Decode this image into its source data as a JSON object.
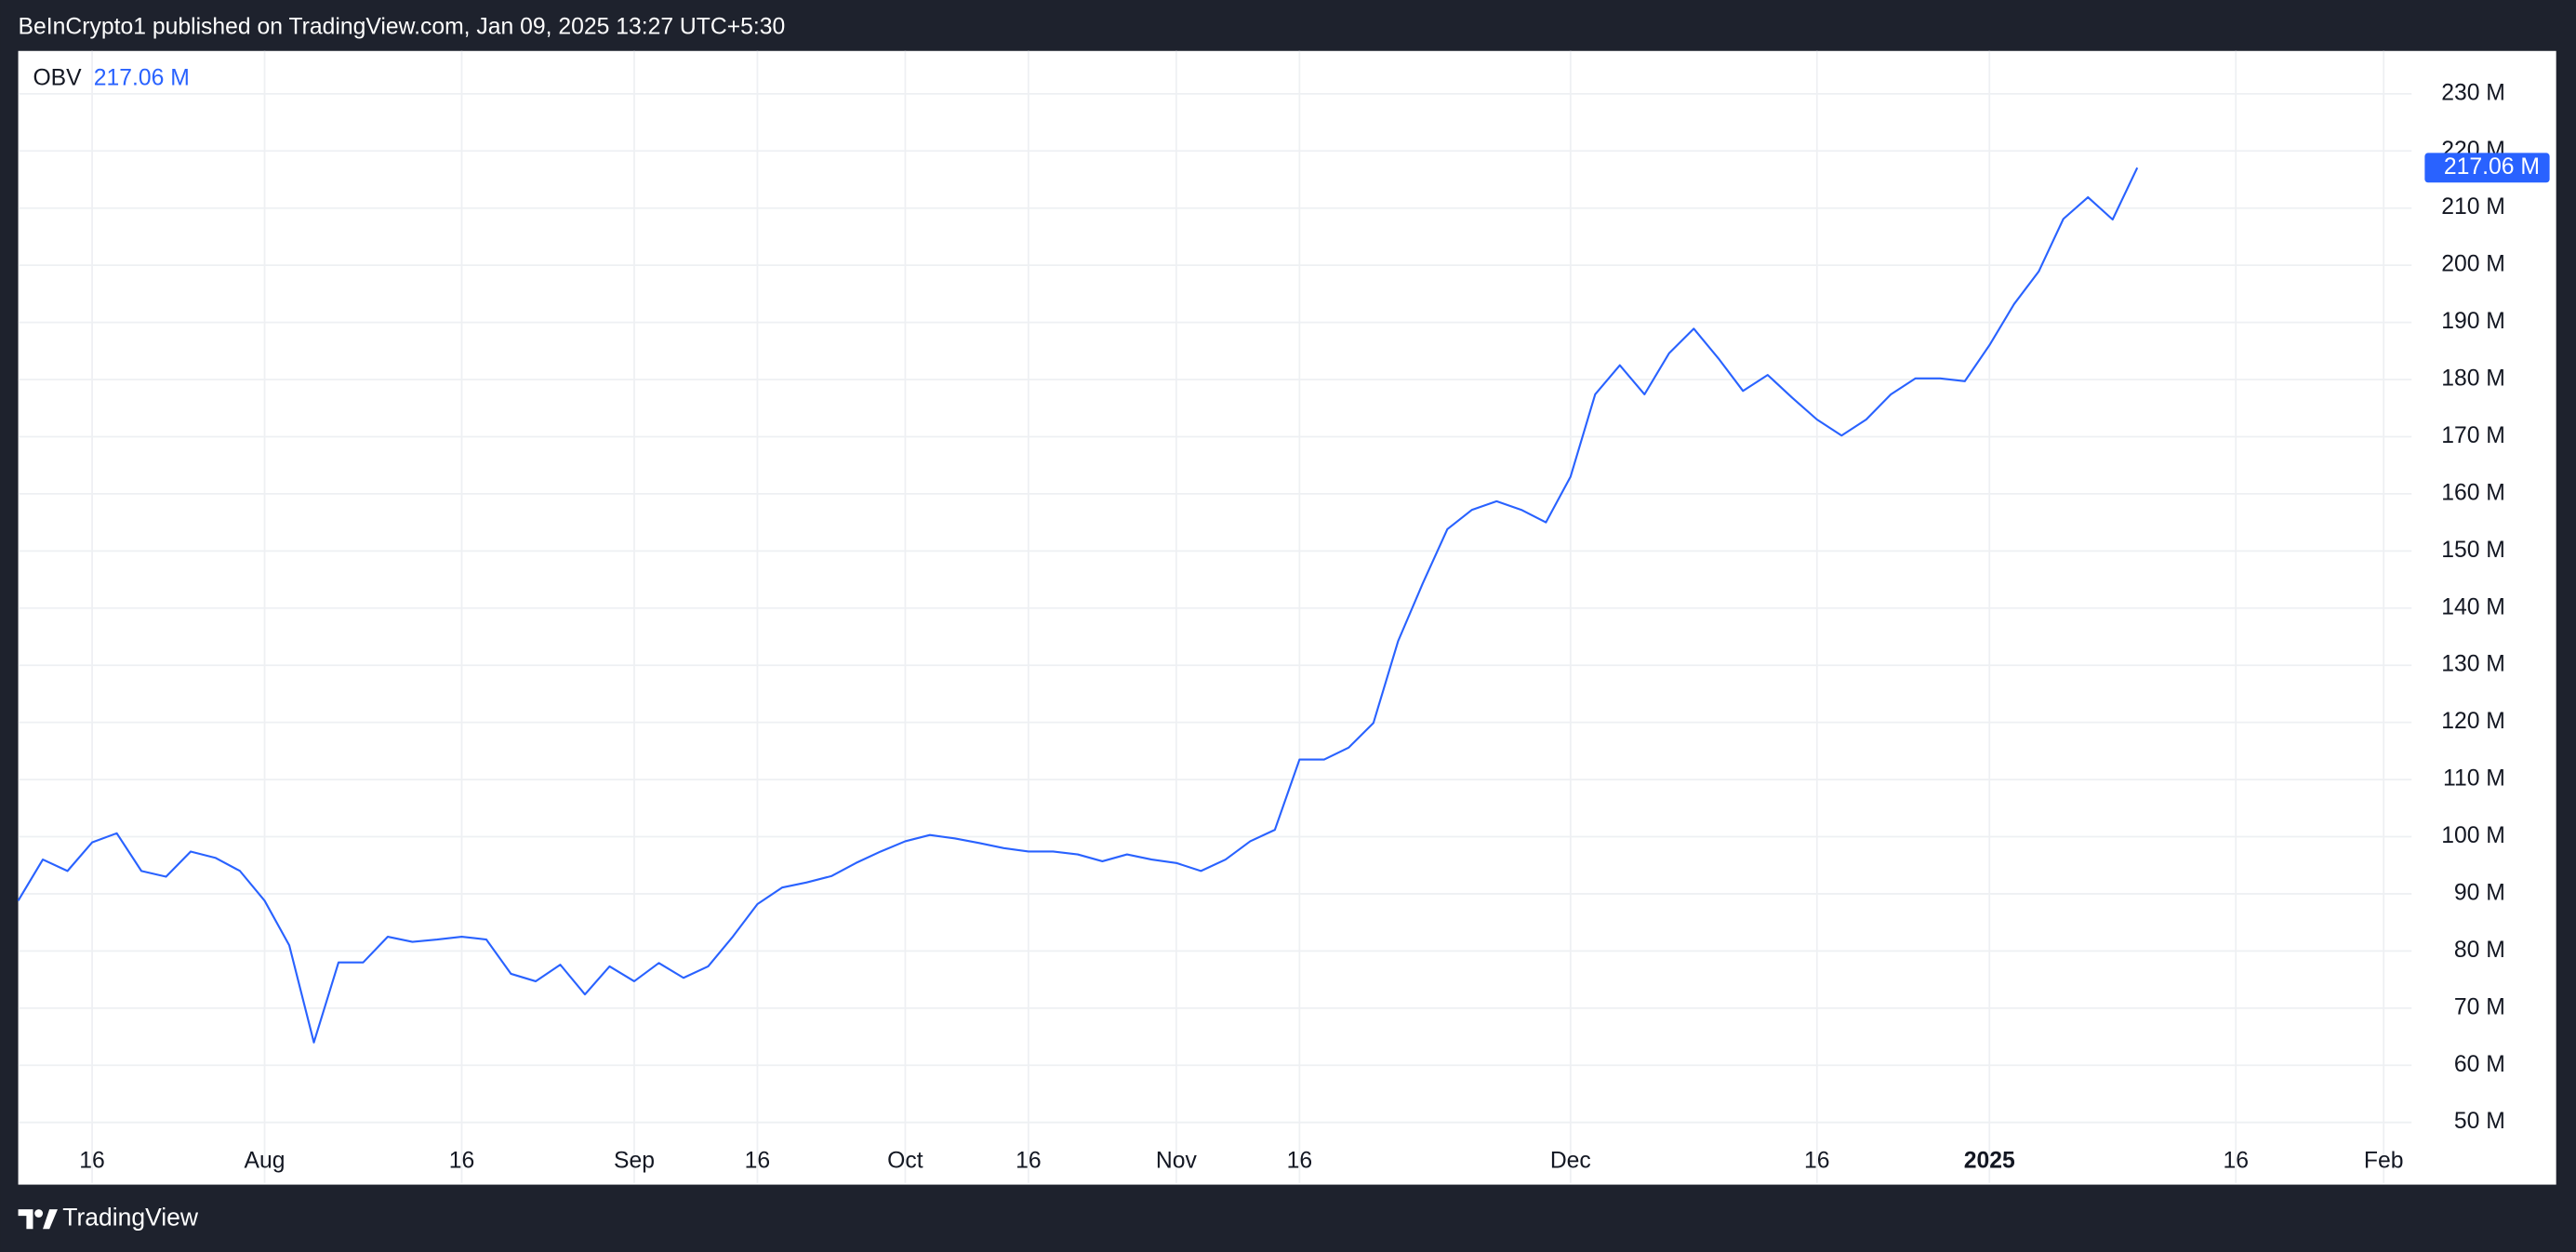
{
  "header": {
    "text": "BeInCrypto1 published on TradingView.com, Jan 09, 2025 13:27 UTC+5:30"
  },
  "footer": {
    "brand": "TradingView"
  },
  "chart_data": {
    "type": "line",
    "categories": [
      null,
      null,
      null,
      "16",
      null,
      null,
      null,
      null,
      null,
      null,
      "Aug",
      null,
      null,
      null,
      null,
      null,
      null,
      null,
      "16",
      null,
      null,
      null,
      null,
      null,
      null,
      "Sep",
      null,
      null,
      null,
      null,
      "16",
      null,
      null,
      null,
      null,
      null,
      "Oct",
      null,
      null,
      null,
      null,
      "16",
      null,
      null,
      null,
      null,
      null,
      "Nov",
      null,
      null,
      null,
      null,
      "16",
      null,
      null,
      null,
      null,
      null,
      null,
      null,
      null,
      null,
      null,
      "Dec",
      null,
      null,
      null,
      null,
      null,
      null,
      null,
      null,
      null,
      "16",
      null,
      null,
      null,
      null,
      null,
      null,
      "2025",
      null,
      null,
      null,
      null,
      null,
      null,
      null,
      null,
      null,
      "16",
      null,
      null,
      null,
      null,
      null,
      "Feb",
      null,
      null,
      null,
      null,
      null,
      null
    ],
    "series": [
      {
        "name": "OBV",
        "color": "#2962ff",
        "values": [
          88.8,
          96,
          94,
          99,
          100.6,
          94,
          93,
          97.4,
          96.3,
          94,
          88.8,
          81,
          64,
          78,
          78,
          82.5,
          81.6,
          82,
          82.5,
          82,
          76,
          74.7,
          77.6,
          72.4,
          77.3,
          74.7,
          77.9,
          75.3,
          77.3,
          82.5,
          88.2,
          91.1,
          92,
          93.1,
          95.4,
          97.4,
          99.2,
          100.3,
          99.7,
          98.9,
          98,
          97.4,
          97.4,
          96.9,
          95.7,
          96.9,
          96,
          95.4,
          94,
          96,
          99.2,
          101.2,
          113.5,
          113.5,
          115.6,
          119.9,
          134.2,
          144.3,
          153.8,
          157.2,
          158.7,
          157.2,
          155,
          163,
          177.4,
          182.5,
          177.4,
          184.6,
          188.9,
          183.7,
          178,
          180.8,
          176.8,
          173,
          170.2,
          173,
          177.4,
          180.2,
          180.2,
          179.7,
          186,
          193.2,
          198.9,
          208.1,
          211.9,
          208,
          217.06,
          null,
          null,
          null,
          null,
          null,
          null,
          null,
          null,
          null,
          null,
          null,
          null,
          null,
          null,
          null,
          null
        ],
        "value_labels": [
          null,
          null,
          null,
          null,
          null,
          null,
          null,
          null,
          null,
          null,
          null,
          null,
          null,
          null,
          null,
          null,
          null,
          null,
          null,
          null,
          null,
          null,
          null,
          null,
          null,
          null,
          null,
          null,
          null,
          null,
          null,
          null,
          null,
          null,
          null,
          null,
          null,
          null,
          null,
          null,
          null,
          null,
          null,
          null,
          null,
          null,
          null,
          null,
          null,
          null,
          null,
          null,
          null,
          null,
          null,
          null,
          null,
          null,
          null,
          null,
          null,
          null,
          null,
          null,
          null,
          null,
          null,
          null,
          null,
          null,
          null,
          null,
          null,
          null,
          null,
          null,
          null,
          null,
          null,
          null,
          null,
          null,
          null,
          null,
          null,
          null,
          "217.06 M",
          null,
          null,
          null,
          null,
          null,
          null,
          null,
          null,
          null,
          null,
          null,
          null,
          null,
          null,
          null,
          null
        ]
      }
    ],
    "ylim": [
      39.4,
      237.5
    ],
    "yticks": [
      {
        "value": 50,
        "label": "50 M"
      },
      {
        "value": 60,
        "label": "60 M"
      },
      {
        "value": 70,
        "label": "70 M"
      },
      {
        "value": 80,
        "label": "80 M"
      },
      {
        "value": 90,
        "label": "90 M"
      },
      {
        "value": 100,
        "label": "100 M"
      },
      {
        "value": 110,
        "label": "110 M"
      },
      {
        "value": 120,
        "label": "120 M"
      },
      {
        "value": 130,
        "label": "130 M"
      },
      {
        "value": 140,
        "label": "140 M"
      },
      {
        "value": 150,
        "label": "150 M"
      },
      {
        "value": 160,
        "label": "160 M"
      },
      {
        "value": 170,
        "label": "170 M"
      },
      {
        "value": 180,
        "label": "180 M"
      },
      {
        "value": 190,
        "label": "190 M"
      },
      {
        "value": 200,
        "label": "200 M"
      },
      {
        "value": 210,
        "label": "210 M"
      },
      {
        "value": 220,
        "label": "220 M"
      },
      {
        "value": 230,
        "label": "230 M"
      }
    ],
    "grid": true
  }
}
